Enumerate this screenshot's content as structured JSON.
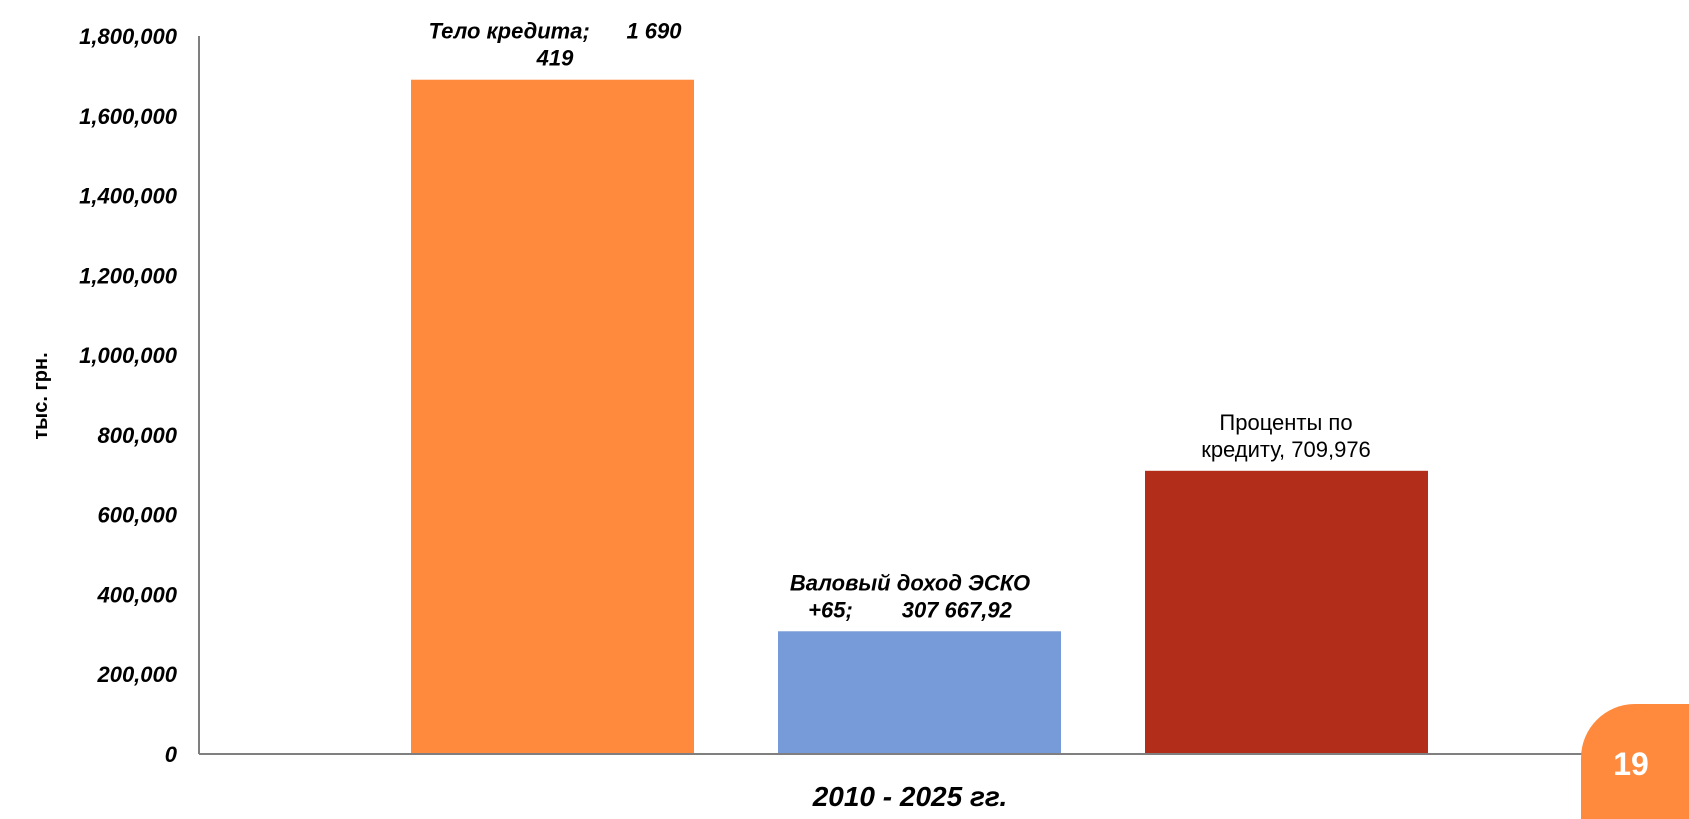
{
  "chart_data": {
    "type": "bar",
    "categories": [
      "Тело кредита",
      "Валовый доход ЭСКО +65",
      "Проценты по кредиту"
    ],
    "values": [
      1690419,
      307667.92,
      709976
    ],
    "colors": [
      "#ff8a3d",
      "#779ad8",
      "#b22d1a"
    ],
    "data_labels": [
      [
        "Тело кредита;      1 690",
        "419"
      ],
      [
        "Валовый доход ЭСКО",
        "+65;        307 667,92"
      ],
      [
        "Проценты по",
        "кредиту, 709,976"
      ]
    ],
    "xlabel": "2010 - 2025 гг.",
    "ylabel": "тыс. грн.",
    "ylim": [
      0,
      1800000
    ],
    "y_ticks": [
      {
        "value": 0,
        "label": "0"
      },
      {
        "value": 200000,
        "label": "200,000"
      },
      {
        "value": 400000,
        "label": "400,000"
      },
      {
        "value": 600000,
        "label": "600,000"
      },
      {
        "value": 800000,
        "label": "800,000"
      },
      {
        "value": 1000000,
        "label": "1,000,000"
      },
      {
        "value": 1200000,
        "label": "1,200,000"
      },
      {
        "value": 1400000,
        "label": "1,400,000"
      },
      {
        "value": 1600000,
        "label": "1,600,000"
      },
      {
        "value": 1800000,
        "label": "1,800,000"
      }
    ],
    "grid": false,
    "legend": "none"
  },
  "page": {
    "number": "19",
    "badge_color": "#ff8a3d"
  }
}
